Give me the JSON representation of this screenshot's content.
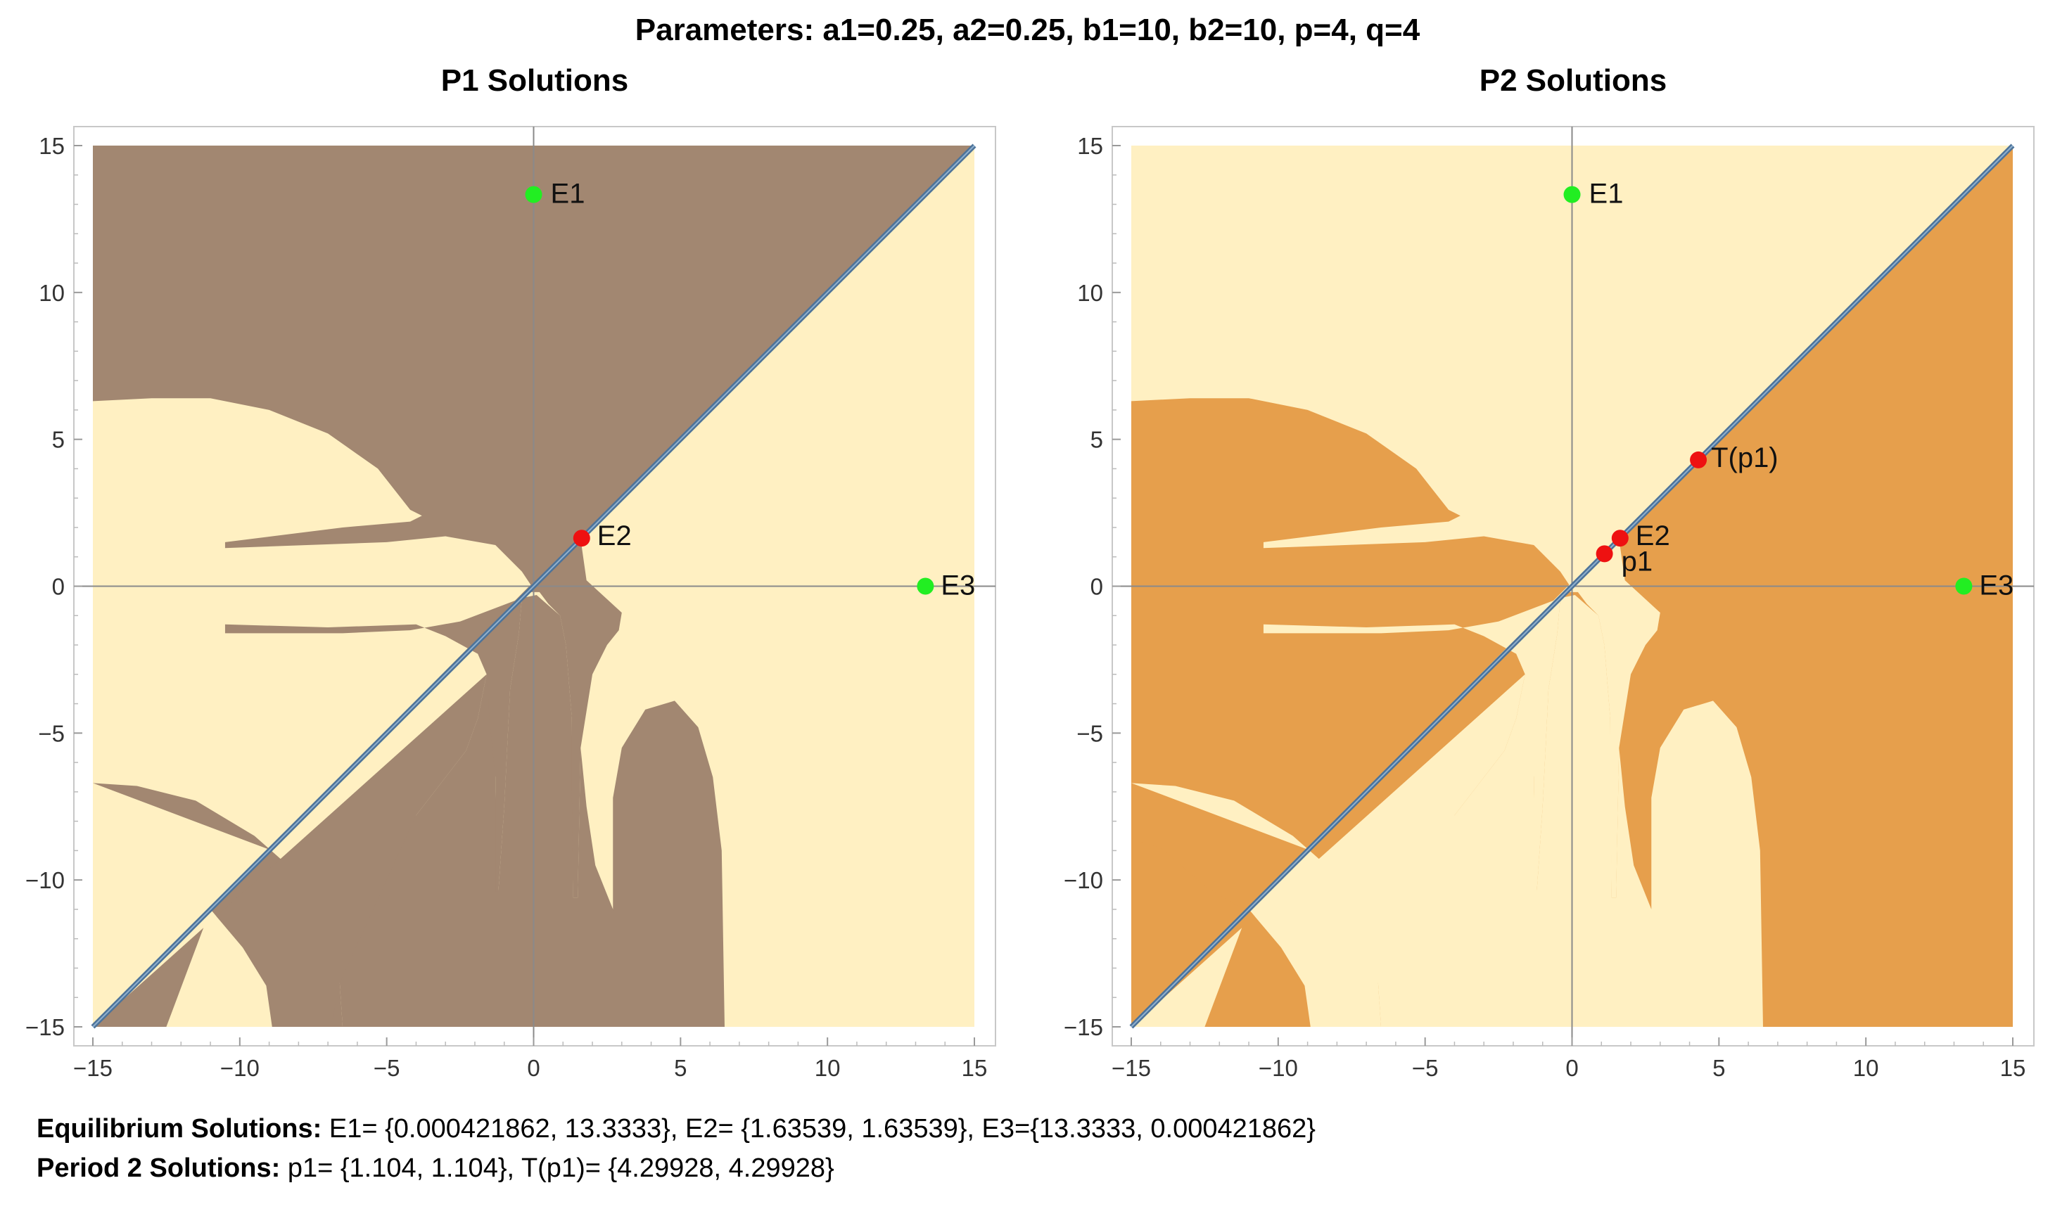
{
  "header": {
    "title": "Parameters: a1=0.25, a2=0.25, b1=10, b2=10, p=4, q=4"
  },
  "chart_data": [
    {
      "type": "region",
      "title": "P1 Solutions",
      "xlim": [
        -15,
        15
      ],
      "ylim": [
        -15,
        15
      ],
      "x_ticks": [
        -15,
        -10,
        -5,
        0,
        5,
        10,
        15
      ],
      "y_ticks": [
        -15,
        -10,
        -5,
        0,
        5,
        10,
        15
      ],
      "colors": {
        "dark_region": "#a28771",
        "light_region": "#fff0c2",
        "diagonal": "#4d7399"
      },
      "points": [
        {
          "label": "E1",
          "x": 0.000421862,
          "y": 13.3333,
          "color": "#22ee22"
        },
        {
          "label": "E2",
          "x": 1.63539,
          "y": 1.63539,
          "color": "#ee1111"
        },
        {
          "label": "E3",
          "x": 13.3333,
          "y": 0.000421862,
          "color": "#22ee22"
        }
      ]
    },
    {
      "type": "region",
      "title": "P2 Solutions",
      "xlim": [
        -15,
        15
      ],
      "ylim": [
        -15,
        15
      ],
      "x_ticks": [
        -15,
        -10,
        -5,
        0,
        5,
        10,
        15
      ],
      "y_ticks": [
        -15,
        -10,
        -5,
        0,
        5,
        10,
        15
      ],
      "colors": {
        "dark_region": "#e69f4c",
        "light_region": "#fff0c2",
        "diagonal": "#4d7399"
      },
      "points": [
        {
          "label": "E1",
          "x": 0.000421862,
          "y": 13.3333,
          "color": "#22ee22"
        },
        {
          "label": "T(p1)",
          "x": 4.29928,
          "y": 4.29928,
          "color": "#ee1111"
        },
        {
          "label": "E2",
          "x": 1.63539,
          "y": 1.63539,
          "color": "#ee1111"
        },
        {
          "label": "p1",
          "x": 1.104,
          "y": 1.104,
          "color": "#ee1111"
        },
        {
          "label": "E3",
          "x": 13.3333,
          "y": 0.000421862,
          "color": "#22ee22"
        }
      ]
    }
  ],
  "footer": {
    "equilibrium_label": "Equilibrium Solutions:",
    "equilibrium_text": "E1= {0.000421862, 13.3333}, E2= {1.63539, 1.63539}, E3={13.3333, 0.000421862}",
    "period2_label": "Period 2 Solutions:",
    "period2_text": "p1= {1.104, 1.104}, T(p1)= {4.29928, 4.29928}"
  }
}
